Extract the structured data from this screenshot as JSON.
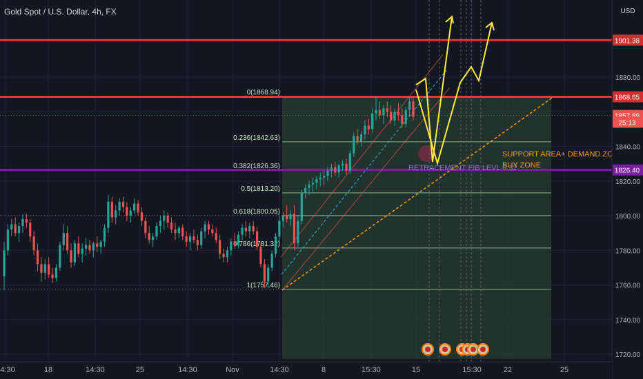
{
  "header": {
    "title": "Gold Spot / U.S. Dollar, 4h, FX",
    "currency": "USD"
  },
  "colors": {
    "background": "#131722",
    "up": "#26a69a",
    "down": "#ef5350",
    "fib_fill": "#2e4a35",
    "fib_line": "#a5d6a7",
    "resistance": "#e53935",
    "support": "#7b1fa2",
    "projection": "#ffeb3b",
    "channel": "#ef5350",
    "dashed_mid": "#29b6f6",
    "dashed_low": "#ff9800",
    "annotation_orange": "#ff9800",
    "annotation_purple": "#9575cd",
    "grid": "#1e2230",
    "text": "#b2b5be"
  },
  "chart_data": {
    "type": "candlestick",
    "y_axis": {
      "ylim": [
        1715,
        1910
      ],
      "ticks": [
        1720,
        1740,
        1760,
        1780,
        1800,
        1820,
        1840,
        1860,
        1880
      ],
      "tick_labels": [
        "1720.00",
        "1740.00",
        "1760.00",
        "1780.00",
        "1800.00",
        "1820.00",
        "1840.00",
        "1860.00",
        "1880.00"
      ]
    },
    "x_axis": {
      "tick_labels": [
        "14:30",
        "18",
        "14:30",
        "25",
        "14:30",
        "Nov",
        "14:30",
        "8",
        "15:30",
        "15",
        "15:30",
        "22",
        "25"
      ]
    },
    "price_labels": [
      {
        "label": "1901.38",
        "value": 1901.38,
        "style": "red"
      },
      {
        "label": "1868.65",
        "value": 1868.65,
        "style": "red"
      },
      {
        "label": "1857.89",
        "value": 1857.89,
        "style": "red"
      },
      {
        "label": "25:13",
        "value": 1854,
        "style": "red"
      },
      {
        "label": "1826.40",
        "value": 1826.4,
        "style": "purple"
      }
    ],
    "horizontal_lines": [
      {
        "value": 1901.38,
        "style": "red"
      },
      {
        "value": 1868.65,
        "style": "red"
      },
      {
        "value": 1826.4,
        "style": "purple"
      }
    ],
    "fibonacci": {
      "levels": [
        {
          "ratio": 0,
          "price": 1868.94,
          "label": "0(1868.94)"
        },
        {
          "ratio": 0.236,
          "price": 1842.63,
          "label": "0.236(1842.63)"
        },
        {
          "ratio": 0.382,
          "price": 1826.36,
          "label": "0.382(1826.36)"
        },
        {
          "ratio": 0.5,
          "price": 1813.2,
          "label": "0.5(1813.20)"
        },
        {
          "ratio": 0.618,
          "price": 1800.05,
          "label": "0.618(1800.05)"
        },
        {
          "ratio": 0.786,
          "price": 1781.32,
          "label": "0.786(1781.32)"
        },
        {
          "ratio": 1,
          "price": 1757.46,
          "label": "1(1757.46)"
        }
      ]
    },
    "annotations": [
      {
        "text": "SUPPORT AREA+ DEMAND ZONE",
        "color": "orange"
      },
      {
        "text": "BUY ZONE",
        "color": "orange"
      },
      {
        "text": "RETRACEMENT FIB LEVL 0.32",
        "color": "purple"
      }
    ],
    "candles": [
      {
        "o": 1765,
        "h": 1785,
        "l": 1757,
        "c": 1780
      },
      {
        "o": 1780,
        "h": 1795,
        "l": 1777,
        "c": 1792
      },
      {
        "o": 1792,
        "h": 1798,
        "l": 1788,
        "c": 1795
      },
      {
        "o": 1795,
        "h": 1799,
        "l": 1788,
        "c": 1790
      },
      {
        "o": 1790,
        "h": 1796,
        "l": 1785,
        "c": 1794
      },
      {
        "o": 1794,
        "h": 1801,
        "l": 1790,
        "c": 1798
      },
      {
        "o": 1798,
        "h": 1801,
        "l": 1793,
        "c": 1796
      },
      {
        "o": 1796,
        "h": 1798,
        "l": 1785,
        "c": 1788
      },
      {
        "o": 1788,
        "h": 1791,
        "l": 1777,
        "c": 1780
      },
      {
        "o": 1780,
        "h": 1784,
        "l": 1768,
        "c": 1772
      },
      {
        "o": 1772,
        "h": 1776,
        "l": 1762,
        "c": 1767
      },
      {
        "o": 1767,
        "h": 1775,
        "l": 1763,
        "c": 1772
      },
      {
        "o": 1772,
        "h": 1776,
        "l": 1764,
        "c": 1766
      },
      {
        "o": 1766,
        "h": 1770,
        "l": 1761,
        "c": 1764
      },
      {
        "o": 1764,
        "h": 1772,
        "l": 1762,
        "c": 1770
      },
      {
        "o": 1770,
        "h": 1785,
        "l": 1768,
        "c": 1783
      },
      {
        "o": 1783,
        "h": 1795,
        "l": 1780,
        "c": 1790
      },
      {
        "o": 1790,
        "h": 1794,
        "l": 1778,
        "c": 1780
      },
      {
        "o": 1780,
        "h": 1784,
        "l": 1770,
        "c": 1773
      },
      {
        "o": 1773,
        "h": 1786,
        "l": 1771,
        "c": 1784
      },
      {
        "o": 1784,
        "h": 1788,
        "l": 1776,
        "c": 1778
      },
      {
        "o": 1778,
        "h": 1784,
        "l": 1773,
        "c": 1781
      },
      {
        "o": 1781,
        "h": 1787,
        "l": 1777,
        "c": 1783
      },
      {
        "o": 1783,
        "h": 1786,
        "l": 1778,
        "c": 1780
      },
      {
        "o": 1780,
        "h": 1785,
        "l": 1776,
        "c": 1784
      },
      {
        "o": 1784,
        "h": 1788,
        "l": 1779,
        "c": 1782
      },
      {
        "o": 1782,
        "h": 1786,
        "l": 1778,
        "c": 1785
      },
      {
        "o": 1785,
        "h": 1795,
        "l": 1782,
        "c": 1793
      },
      {
        "o": 1793,
        "h": 1812,
        "l": 1790,
        "c": 1808
      },
      {
        "o": 1808,
        "h": 1811,
        "l": 1796,
        "c": 1799
      },
      {
        "o": 1799,
        "h": 1806,
        "l": 1795,
        "c": 1803
      },
      {
        "o": 1803,
        "h": 1810,
        "l": 1800,
        "c": 1808
      },
      {
        "o": 1808,
        "h": 1811,
        "l": 1802,
        "c": 1805
      },
      {
        "o": 1805,
        "h": 1808,
        "l": 1797,
        "c": 1800
      },
      {
        "o": 1800,
        "h": 1805,
        "l": 1796,
        "c": 1803
      },
      {
        "o": 1803,
        "h": 1810,
        "l": 1801,
        "c": 1807
      },
      {
        "o": 1807,
        "h": 1809,
        "l": 1800,
        "c": 1802
      },
      {
        "o": 1802,
        "h": 1805,
        "l": 1794,
        "c": 1797
      },
      {
        "o": 1797,
        "h": 1799,
        "l": 1787,
        "c": 1790
      },
      {
        "o": 1790,
        "h": 1794,
        "l": 1784,
        "c": 1786
      },
      {
        "o": 1786,
        "h": 1790,
        "l": 1782,
        "c": 1788
      },
      {
        "o": 1788,
        "h": 1796,
        "l": 1786,
        "c": 1794
      },
      {
        "o": 1794,
        "h": 1800,
        "l": 1790,
        "c": 1797
      },
      {
        "o": 1797,
        "h": 1803,
        "l": 1792,
        "c": 1800
      },
      {
        "o": 1800,
        "h": 1802,
        "l": 1793,
        "c": 1796
      },
      {
        "o": 1796,
        "h": 1799,
        "l": 1790,
        "c": 1792
      },
      {
        "o": 1792,
        "h": 1796,
        "l": 1786,
        "c": 1790
      },
      {
        "o": 1790,
        "h": 1794,
        "l": 1787,
        "c": 1793
      },
      {
        "o": 1793,
        "h": 1795,
        "l": 1786,
        "c": 1788
      },
      {
        "o": 1788,
        "h": 1791,
        "l": 1782,
        "c": 1785
      },
      {
        "o": 1785,
        "h": 1790,
        "l": 1780,
        "c": 1788
      },
      {
        "o": 1788,
        "h": 1792,
        "l": 1784,
        "c": 1786
      },
      {
        "o": 1786,
        "h": 1789,
        "l": 1780,
        "c": 1783
      },
      {
        "o": 1783,
        "h": 1793,
        "l": 1781,
        "c": 1791
      },
      {
        "o": 1791,
        "h": 1797,
        "l": 1787,
        "c": 1795
      },
      {
        "o": 1795,
        "h": 1797,
        "l": 1789,
        "c": 1792
      },
      {
        "o": 1792,
        "h": 1795,
        "l": 1788,
        "c": 1790
      },
      {
        "o": 1790,
        "h": 1793,
        "l": 1784,
        "c": 1786
      },
      {
        "o": 1786,
        "h": 1789,
        "l": 1775,
        "c": 1778
      },
      {
        "o": 1778,
        "h": 1781,
        "l": 1773,
        "c": 1776
      },
      {
        "o": 1776,
        "h": 1782,
        "l": 1773,
        "c": 1780
      },
      {
        "o": 1780,
        "h": 1787,
        "l": 1777,
        "c": 1785
      },
      {
        "o": 1785,
        "h": 1790,
        "l": 1781,
        "c": 1783
      },
      {
        "o": 1783,
        "h": 1791,
        "l": 1781,
        "c": 1789
      },
      {
        "o": 1789,
        "h": 1795,
        "l": 1786,
        "c": 1793
      },
      {
        "o": 1793,
        "h": 1797,
        "l": 1788,
        "c": 1791
      },
      {
        "o": 1791,
        "h": 1796,
        "l": 1787,
        "c": 1794
      },
      {
        "o": 1794,
        "h": 1797,
        "l": 1789,
        "c": 1791
      },
      {
        "o": 1791,
        "h": 1793,
        "l": 1780,
        "c": 1782
      },
      {
        "o": 1782,
        "h": 1784,
        "l": 1770,
        "c": 1772
      },
      {
        "o": 1772,
        "h": 1775,
        "l": 1758,
        "c": 1762
      },
      {
        "o": 1762,
        "h": 1772,
        "l": 1758,
        "c": 1770
      },
      {
        "o": 1770,
        "h": 1780,
        "l": 1768,
        "c": 1778
      },
      {
        "o": 1778,
        "h": 1790,
        "l": 1776,
        "c": 1788
      },
      {
        "o": 1788,
        "h": 1800,
        "l": 1785,
        "c": 1797
      },
      {
        "o": 1797,
        "h": 1802,
        "l": 1793,
        "c": 1800
      },
      {
        "o": 1800,
        "h": 1806,
        "l": 1796,
        "c": 1798
      },
      {
        "o": 1798,
        "h": 1803,
        "l": 1794,
        "c": 1801
      },
      {
        "o": 1801,
        "h": 1806,
        "l": 1780,
        "c": 1784
      },
      {
        "o": 1784,
        "h": 1800,
        "l": 1782,
        "c": 1797
      },
      {
        "o": 1797,
        "h": 1815,
        "l": 1795,
        "c": 1813
      },
      {
        "o": 1813,
        "h": 1818,
        "l": 1810,
        "c": 1816
      },
      {
        "o": 1816,
        "h": 1820,
        "l": 1812,
        "c": 1818
      },
      {
        "o": 1818,
        "h": 1822,
        "l": 1814,
        "c": 1819
      },
      {
        "o": 1819,
        "h": 1823,
        "l": 1815,
        "c": 1821
      },
      {
        "o": 1821,
        "h": 1825,
        "l": 1817,
        "c": 1822
      },
      {
        "o": 1822,
        "h": 1826,
        "l": 1818,
        "c": 1823
      },
      {
        "o": 1823,
        "h": 1828,
        "l": 1820,
        "c": 1826
      },
      {
        "o": 1826,
        "h": 1830,
        "l": 1822,
        "c": 1828
      },
      {
        "o": 1828,
        "h": 1831,
        "l": 1823,
        "c": 1825
      },
      {
        "o": 1825,
        "h": 1830,
        "l": 1822,
        "c": 1829
      },
      {
        "o": 1829,
        "h": 1832,
        "l": 1826,
        "c": 1830
      },
      {
        "o": 1830,
        "h": 1833,
        "l": 1824,
        "c": 1826
      },
      {
        "o": 1826,
        "h": 1838,
        "l": 1824,
        "c": 1836
      },
      {
        "o": 1836,
        "h": 1848,
        "l": 1834,
        "c": 1846
      },
      {
        "o": 1846,
        "h": 1850,
        "l": 1841,
        "c": 1843
      },
      {
        "o": 1843,
        "h": 1849,
        "l": 1840,
        "c": 1847
      },
      {
        "o": 1847,
        "h": 1855,
        "l": 1844,
        "c": 1852
      },
      {
        "o": 1852,
        "h": 1856,
        "l": 1847,
        "c": 1850
      },
      {
        "o": 1850,
        "h": 1862,
        "l": 1848,
        "c": 1859
      },
      {
        "o": 1859,
        "h": 1869,
        "l": 1855,
        "c": 1861
      },
      {
        "o": 1861,
        "h": 1866,
        "l": 1856,
        "c": 1858
      },
      {
        "o": 1858,
        "h": 1864,
        "l": 1853,
        "c": 1862
      },
      {
        "o": 1862,
        "h": 1866,
        "l": 1857,
        "c": 1860
      },
      {
        "o": 1860,
        "h": 1864,
        "l": 1853,
        "c": 1855
      },
      {
        "o": 1855,
        "h": 1862,
        "l": 1852,
        "c": 1860
      },
      {
        "o": 1860,
        "h": 1865,
        "l": 1855,
        "c": 1858
      },
      {
        "o": 1858,
        "h": 1862,
        "l": 1851,
        "c": 1853
      },
      {
        "o": 1853,
        "h": 1863,
        "l": 1851,
        "c": 1861
      },
      {
        "o": 1861,
        "h": 1868,
        "l": 1857,
        "c": 1866
      },
      {
        "o": 1866,
        "h": 1868,
        "l": 1855,
        "c": 1857
      }
    ]
  }
}
